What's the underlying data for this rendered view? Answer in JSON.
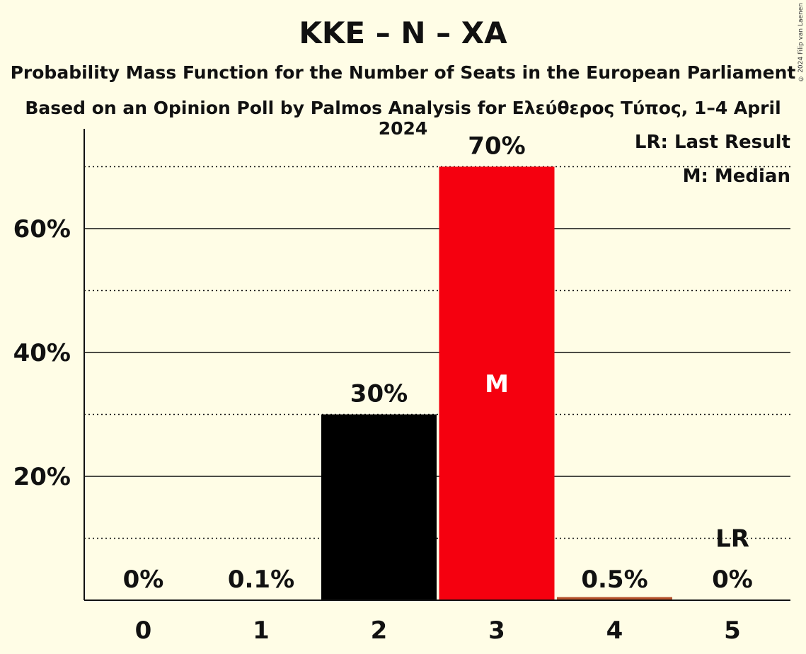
{
  "title": "KKE – N – XA",
  "subtitle_1": "Probability Mass Function for the Number of Seats in the European Parliament",
  "subtitle_2": "Based on an Opinion Poll by Palmos Analysis for Ελεύθερος Τύπος, 1–4 April 2024",
  "copyright": "© 2024 Filip van Laenen",
  "legend": {
    "last_result": "LR: Last Result",
    "median": "M: Median"
  },
  "colors": {
    "background": "#fffde6",
    "bar_default": "#000000",
    "bar_median": "#f5000f",
    "bar_small": "#b5512b"
  },
  "chart_data": {
    "type": "bar",
    "categories": [
      "0",
      "1",
      "2",
      "3",
      "4",
      "5"
    ],
    "values": [
      0,
      0.1,
      30,
      70,
      0.5,
      0
    ],
    "value_labels": [
      "0%",
      "0.1%",
      "30%",
      "70%",
      "0.5%",
      "0%"
    ],
    "median_category": "3",
    "median_marker": "M",
    "last_result_category": "5",
    "last_result_marker": "LR",
    "ylim": [
      0,
      76
    ],
    "y_ticks": [
      20,
      40,
      60
    ],
    "y_tick_labels": [
      "20%",
      "40%",
      "60%"
    ],
    "y_minor_gridlines": [
      10,
      30,
      50,
      70
    ],
    "grid": true,
    "legend_position": "top-right"
  }
}
